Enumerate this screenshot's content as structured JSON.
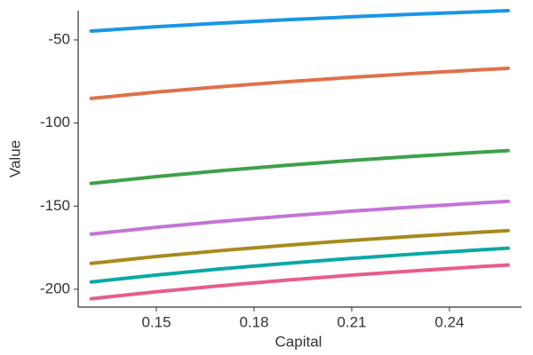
{
  "chart_data": {
    "type": "line",
    "xlabel": "Capital",
    "ylabel": "Value",
    "x": [
      0.13,
      0.15,
      0.17,
      0.19,
      0.21,
      0.23,
      0.25,
      0.258
    ],
    "series": [
      {
        "color": "#1a96e6",
        "values": [
          -44.7,
          -42.1,
          -39.9,
          -37.9,
          -36.1,
          -34.5,
          -33.0,
          -32.4
        ]
      },
      {
        "color": "#e0704a",
        "values": [
          -85.2,
          -81.4,
          -78.1,
          -75.2,
          -72.5,
          -70.1,
          -67.9,
          -67.1
        ]
      },
      {
        "color": "#3fa04a",
        "values": [
          -136.3,
          -132.2,
          -128.6,
          -125.4,
          -122.5,
          -119.9,
          -117.5,
          -116.6
        ]
      },
      {
        "color": "#c474d6",
        "values": [
          -166.8,
          -162.7,
          -159.1,
          -155.9,
          -153.0,
          -150.4,
          -148.0,
          -147.1
        ]
      },
      {
        "color": "#a88a1c",
        "values": [
          -184.4,
          -180.3,
          -176.7,
          -173.5,
          -170.6,
          -168.0,
          -165.6,
          -164.7
        ]
      },
      {
        "color": "#0aa8a6",
        "values": [
          -195.6,
          -191.4,
          -187.7,
          -184.4,
          -181.4,
          -178.7,
          -176.2,
          -175.3
        ]
      },
      {
        "color": "#e85c8c",
        "values": [
          -205.7,
          -201.5,
          -197.8,
          -194.5,
          -191.5,
          -188.8,
          -186.3,
          -185.4
        ]
      }
    ],
    "xlim": [
      0.126,
      0.2621
    ],
    "ylim": [
      -210.7,
      -32.4
    ],
    "xticks": [
      0.15,
      0.18,
      0.21,
      0.24
    ],
    "yticks": [
      -200,
      -150,
      -100,
      -50
    ],
    "grid": false
  }
}
